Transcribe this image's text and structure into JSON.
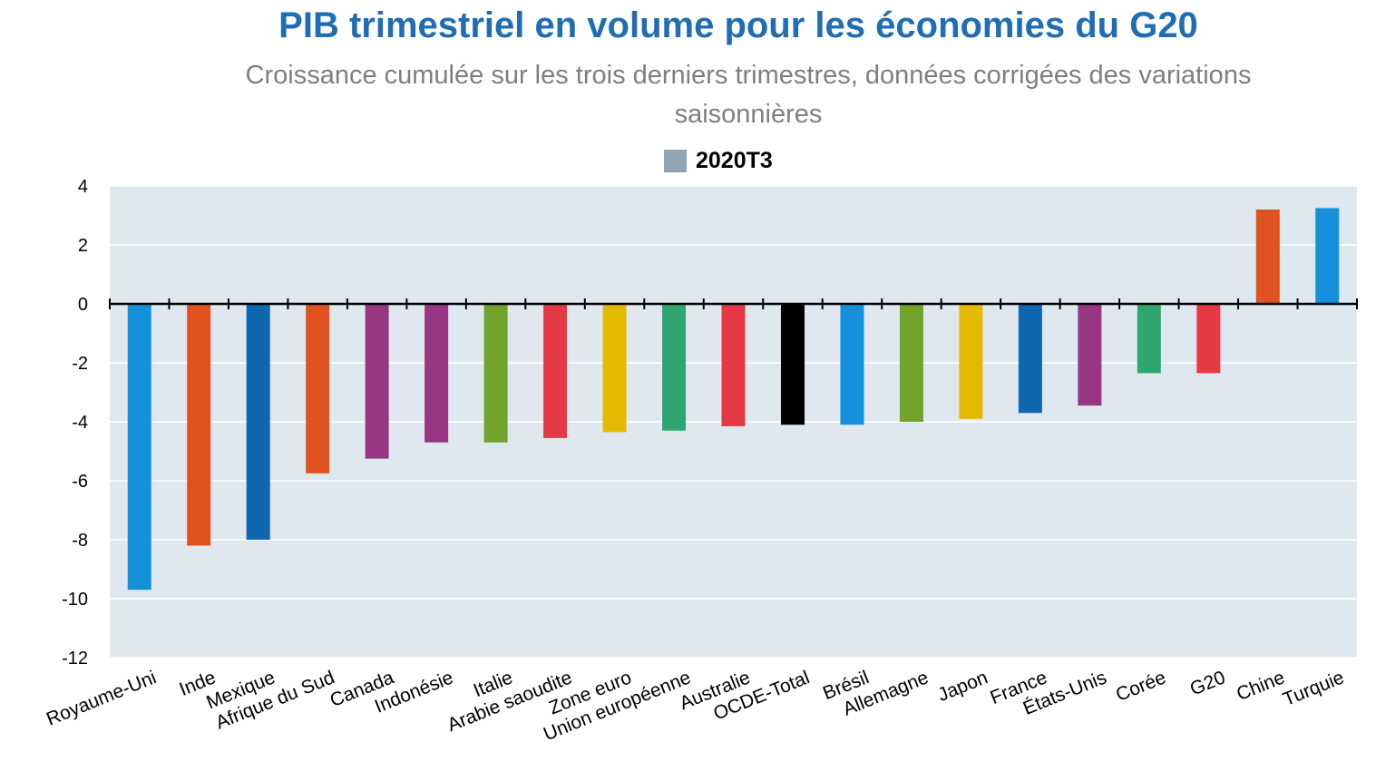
{
  "chart_data": {
    "type": "bar",
    "title": "PIB trimestriel en volume pour les économies du G20",
    "subtitle": "Croissance cumulée sur les trois derniers trimestres, données corrigées des variations saisonnières",
    "legend": {
      "label": "2020T3",
      "color": "#8fa4b3",
      "placement": "top-center"
    },
    "categories": [
      "Royaume-Uni",
      "Inde",
      "Mexique",
      "Afrique du Sud",
      "Canada",
      "Indonésie",
      "Italie",
      "Arabie saoudite",
      "Zone euro",
      "Union européenne",
      "Australie",
      "OCDE-Total",
      "Brésil",
      "Allemagne",
      "Japon",
      "France",
      "États-Unis",
      "Corée",
      "G20",
      "Chine",
      "Turquie"
    ],
    "values": [
      -9.7,
      -8.2,
      -8.0,
      -5.75,
      -5.25,
      -4.7,
      -4.7,
      -4.55,
      -4.35,
      -4.3,
      -4.15,
      -4.1,
      -4.1,
      -4.0,
      -3.9,
      -3.7,
      -3.45,
      -2.35,
      -2.35,
      3.2,
      3.25
    ],
    "colors": [
      "#1591dc",
      "#e0531f",
      "#0e67b0",
      "#e0531f",
      "#973784",
      "#973784",
      "#71a22a",
      "#e63946",
      "#e4b902",
      "#2fa672",
      "#e63946",
      "#000000",
      "#1591dc",
      "#71a22a",
      "#e4b902",
      "#0e67b0",
      "#973784",
      "#2fa672",
      "#e63946",
      "#e0531f",
      "#1591dc"
    ],
    "ylim": [
      -12,
      4
    ],
    "yticks": [
      4,
      2,
      0,
      -2,
      -4,
      -6,
      -8,
      -10,
      -12
    ],
    "xlabel": "",
    "ylabel": "",
    "grid": true,
    "plot_background": "#dfe8ef"
  }
}
